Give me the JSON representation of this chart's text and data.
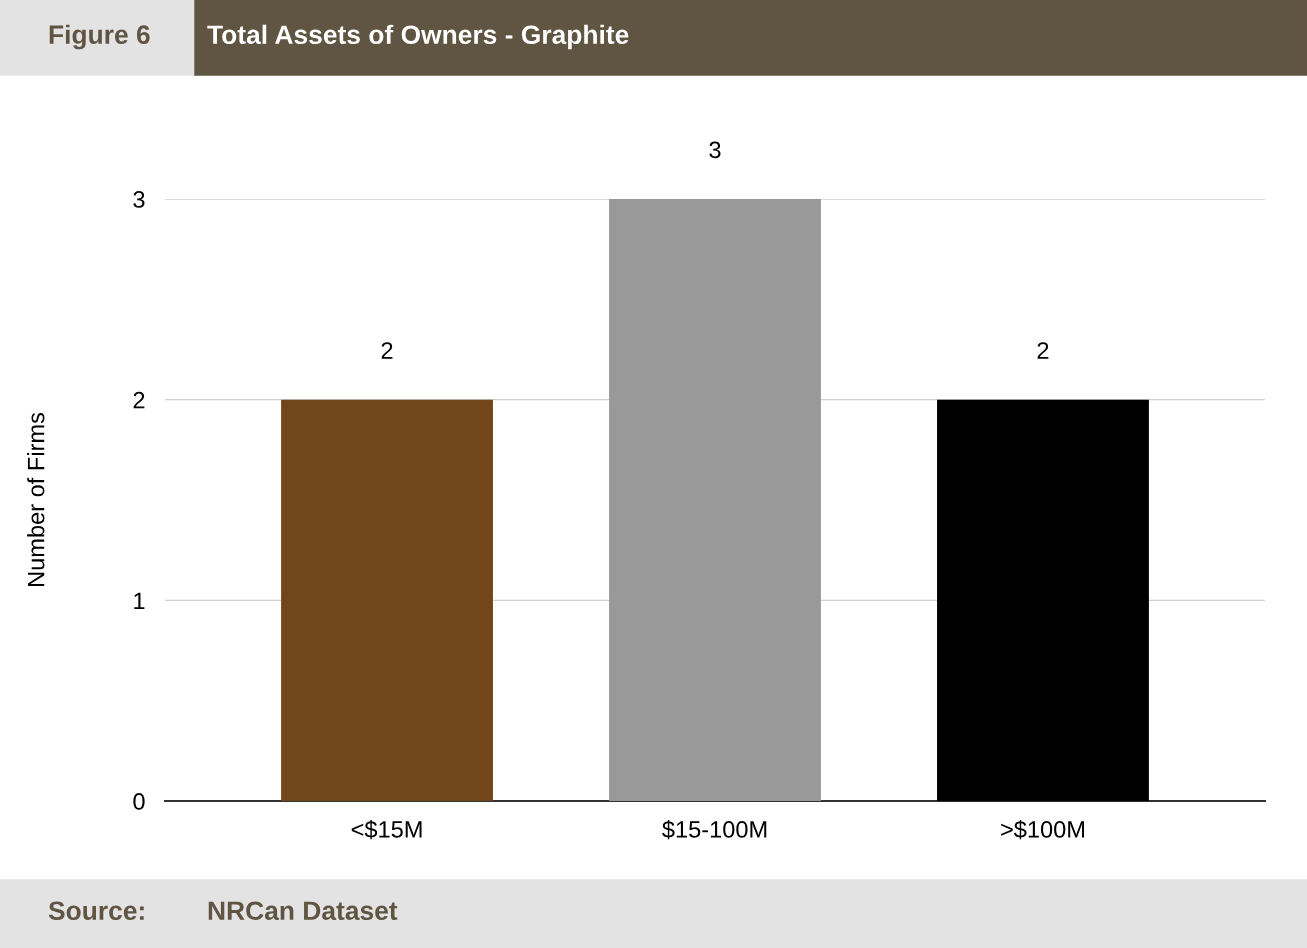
{
  "chart_data": {
    "type": "bar",
    "title": "Total Assets of Owners - Graphite",
    "ylabel": "Number of Firms",
    "annotations": [
      "Figure 6",
      "Source:",
      "NRCan Dataset"
    ],
    "categories": [
      "<$15M",
      "$15-100M",
      ">$100M"
    ],
    "values": [
      2,
      3,
      2
    ],
    "colors": [
      "#71461b",
      "#999999",
      "#000000"
    ],
    "ylim": [
      0,
      3
    ],
    "yticks": [
      0,
      1,
      2,
      3
    ],
    "grid": "y",
    "data_labels": true
  }
}
